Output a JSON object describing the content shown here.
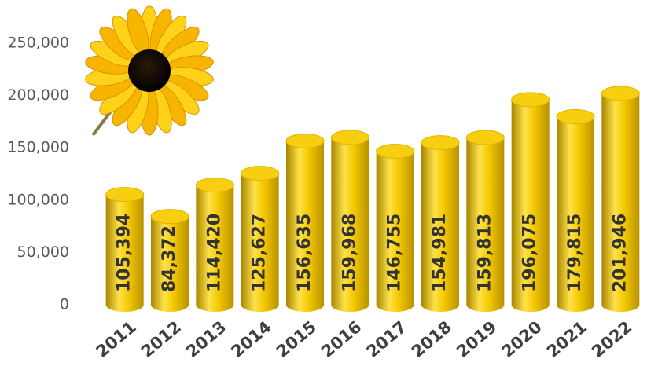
{
  "chart_data": {
    "type": "bar",
    "categories": [
      "2011",
      "2012",
      "2013",
      "2014",
      "2015",
      "2016",
      "2017",
      "2018",
      "2019",
      "2020",
      "2021",
      "2022"
    ],
    "values": [
      105394,
      84372,
      114420,
      125627,
      156635,
      159968,
      146755,
      154981,
      159813,
      196075,
      179815,
      201946
    ],
    "value_labels": [
      "105,394",
      "84,372",
      "114,420",
      "125,627",
      "156,635",
      "159,968",
      "146,755",
      "154,981",
      "159,813",
      "196,075",
      "179,815",
      "201,946"
    ],
    "color": "#f2c500",
    "ylim": [
      0,
      250000
    ],
    "yticks": [
      0,
      {
        "value": 50000,
        "label": "50,000"
      },
      {
        "value": 100000,
        "label": "100,000"
      },
      {
        "value": 150000,
        "label": "150,000"
      },
      {
        "value": 200000,
        "label": "200,000"
      },
      {
        "value": 250000,
        "label": "250,000"
      }
    ],
    "grid": false
  }
}
